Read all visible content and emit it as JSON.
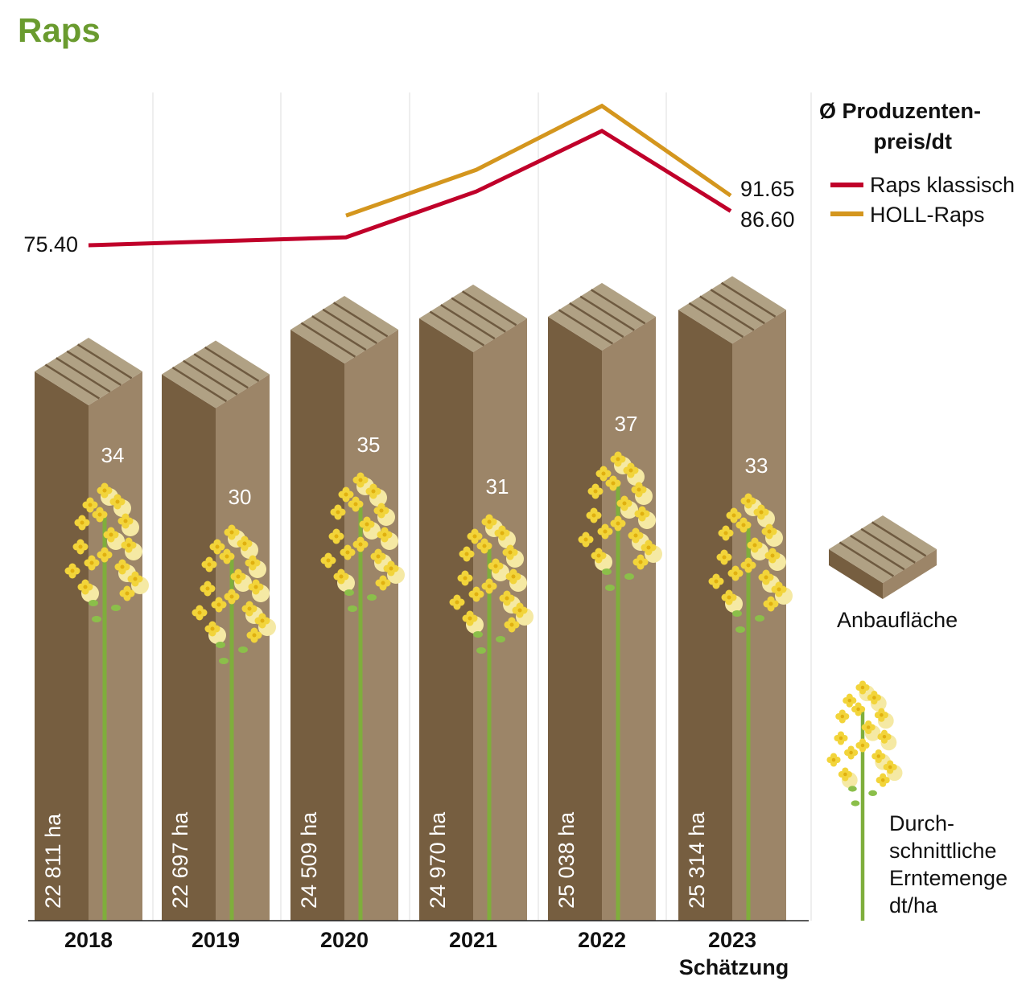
{
  "chart_data": {
    "type": "bar",
    "title": "Raps",
    "categories": [
      "2018",
      "2019",
      "2020",
      "2021",
      "2022",
      "2023"
    ],
    "category_sublabels": {
      "2023": "Schätzung"
    },
    "series": [
      {
        "name": "Anbaufläche",
        "unit": "ha",
        "values": [
          22811,
          22697,
          24509,
          24970,
          25038,
          25314
        ],
        "labels": [
          "22 811 ha",
          "22 697 ha",
          "24 509 ha",
          "24 970 ha",
          "25 038 ha",
          "25 314 ha"
        ]
      },
      {
        "name": "Durchschnittliche Erntemenge dt/ha",
        "values": [
          34,
          30,
          35,
          31,
          37,
          33
        ]
      },
      {
        "name": "Raps klassisch",
        "type": "line",
        "values": [
          75.4,
          76.7,
          78.0,
          93.0,
          112.8,
          86.6
        ],
        "end_labels": {
          "first": "75.40",
          "last": "86.60"
        }
      },
      {
        "name": "HOLL-Raps",
        "type": "line",
        "values": [
          null,
          null,
          85.1,
          100.1,
          121.0,
          91.65
        ],
        "end_labels": {
          "last": "91.65"
        }
      }
    ],
    "legend": {
      "title": "Ø Produzenten-\npreis/dt",
      "title_lines": [
        "Ø Produzenten-",
        "preis/dt"
      ],
      "line_items": [
        "Raps klassisch",
        "HOLL-Raps"
      ],
      "area_label": "Anbaufläche",
      "yield_label_lines": [
        "Durch-",
        "schnittliche",
        "Erntemenge",
        "dt/ha"
      ],
      "position": "right"
    },
    "grid": "vertical lines between years",
    "colors": {
      "title": "#6a9b2f",
      "raps_klassisch": "#c0002a",
      "holl_raps": "#d4961e",
      "bar_front": "#765e40",
      "bar_side": "#9c8568",
      "bar_top": "#b0a184",
      "stem": "#7fae3c",
      "flower": "#f2d43a"
    }
  }
}
